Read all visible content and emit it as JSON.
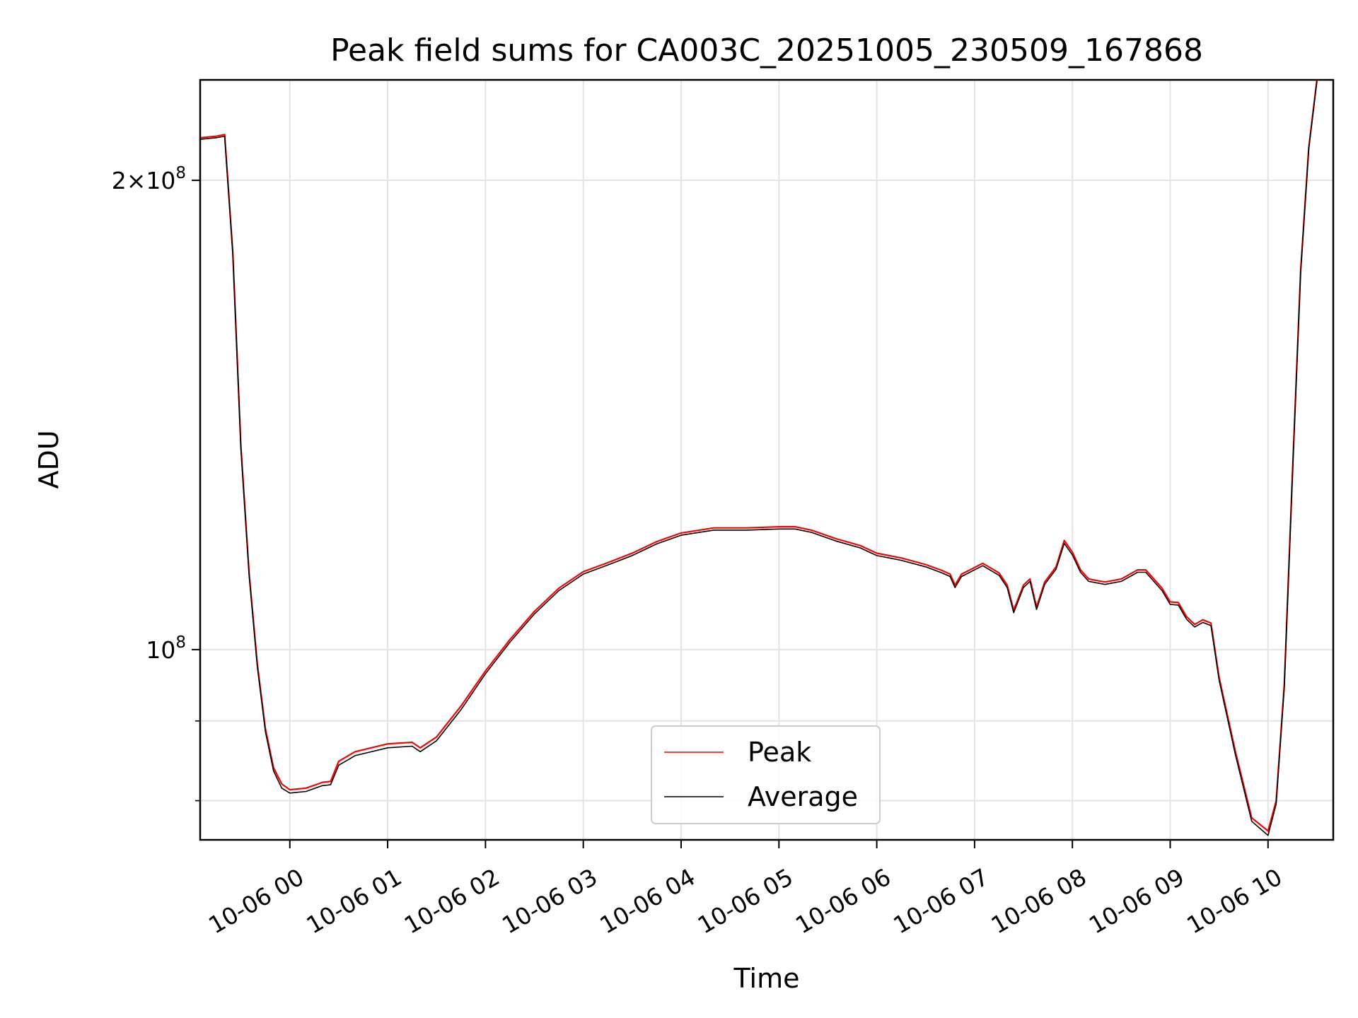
{
  "chart_data": {
    "type": "line",
    "title": "Peak field sums for CA003C_20251005_230509_167868",
    "xlabel": "Time",
    "ylabel": "ADU",
    "y_scale": "log",
    "ylim": [
      75500000,
      232000000
    ],
    "xlim": [
      "2025-10-05 23:05",
      "2025-10-06 10:40"
    ],
    "grid": true,
    "legend_position": "lower-center",
    "x_ticks": [
      {
        "t": "2025-10-06 00:00",
        "label": "10-06 00"
      },
      {
        "t": "2025-10-06 01:00",
        "label": "10-06 01"
      },
      {
        "t": "2025-10-06 02:00",
        "label": "10-06 02"
      },
      {
        "t": "2025-10-06 03:00",
        "label": "10-06 03"
      },
      {
        "t": "2025-10-06 04:00",
        "label": "10-06 04"
      },
      {
        "t": "2025-10-06 05:00",
        "label": "10-06 05"
      },
      {
        "t": "2025-10-06 06:00",
        "label": "10-06 06"
      },
      {
        "t": "2025-10-06 07:00",
        "label": "10-06 07"
      },
      {
        "t": "2025-10-06 08:00",
        "label": "10-06 08"
      },
      {
        "t": "2025-10-06 09:00",
        "label": "10-06 09"
      },
      {
        "t": "2025-10-06 10:00",
        "label": "10-06 10"
      }
    ],
    "y_major_ticks": [
      {
        "value": 100000000,
        "base": "10",
        "exp": "8",
        "coef": ""
      },
      {
        "value": 200000000,
        "base": "10",
        "exp": "8",
        "coef": "2"
      }
    ],
    "y_minor_ticks": [
      80000000,
      90000000
    ],
    "series": [
      {
        "name": "Peak",
        "color": "#ff0000",
        "points": [
          [
            "2025-10-05 23:05",
            213000000
          ],
          [
            "2025-10-05 23:15",
            213500000
          ],
          [
            "2025-10-05 23:20",
            214000000
          ],
          [
            "2025-10-05 23:25",
            180000000
          ],
          [
            "2025-10-05 23:30",
            135000000
          ],
          [
            "2025-10-05 23:35",
            112000000
          ],
          [
            "2025-10-05 23:40",
            98000000
          ],
          [
            "2025-10-05 23:45",
            89000000
          ],
          [
            "2025-10-05 23:50",
            84000000
          ],
          [
            "2025-10-05 23:55",
            82000000
          ],
          [
            "2025-10-06 00:00",
            81300000
          ],
          [
            "2025-10-06 00:10",
            81500000
          ],
          [
            "2025-10-06 00:20",
            82200000
          ],
          [
            "2025-10-06 00:25",
            82300000
          ],
          [
            "2025-10-06 00:30",
            84800000
          ],
          [
            "2025-10-06 00:40",
            86000000
          ],
          [
            "2025-10-06 01:00",
            87000000
          ],
          [
            "2025-10-06 01:15",
            87200000
          ],
          [
            "2025-10-06 01:20",
            86500000
          ],
          [
            "2025-10-06 01:30",
            87900000
          ],
          [
            "2025-10-06 01:45",
            92000000
          ],
          [
            "2025-10-06 02:00",
            96900000
          ],
          [
            "2025-10-06 02:15",
            101500000
          ],
          [
            "2025-10-06 02:30",
            105800000
          ],
          [
            "2025-10-06 02:45",
            109500000
          ],
          [
            "2025-10-06 03:00",
            112200000
          ],
          [
            "2025-10-06 03:15",
            113700000
          ],
          [
            "2025-10-06 03:30",
            115300000
          ],
          [
            "2025-10-06 03:45",
            117300000
          ],
          [
            "2025-10-06 04:00",
            118800000
          ],
          [
            "2025-10-06 04:20",
            119700000
          ],
          [
            "2025-10-06 04:40",
            119700000
          ],
          [
            "2025-10-06 05:00",
            119900000
          ],
          [
            "2025-10-06 05:10",
            119900000
          ],
          [
            "2025-10-06 05:20",
            119300000
          ],
          [
            "2025-10-06 05:35",
            117800000
          ],
          [
            "2025-10-06 05:50",
            116600000
          ],
          [
            "2025-10-06 06:00",
            115300000
          ],
          [
            "2025-10-06 06:15",
            114500000
          ],
          [
            "2025-10-06 06:30",
            113400000
          ],
          [
            "2025-10-06 06:40",
            112400000
          ],
          [
            "2025-10-06 06:45",
            111800000
          ],
          [
            "2025-10-06 06:48",
            110000000
          ],
          [
            "2025-10-06 06:52",
            111800000
          ],
          [
            "2025-10-06 07:05",
            113600000
          ],
          [
            "2025-10-06 07:15",
            112000000
          ],
          [
            "2025-10-06 07:20",
            110000000
          ],
          [
            "2025-10-06 07:24",
            106000000
          ],
          [
            "2025-10-06 07:30",
            110000000
          ],
          [
            "2025-10-06 07:34",
            111000000
          ],
          [
            "2025-10-06 07:38",
            106500000
          ],
          [
            "2025-10-06 07:43",
            110500000
          ],
          [
            "2025-10-06 07:50",
            113000000
          ],
          [
            "2025-10-06 07:55",
            117500000
          ],
          [
            "2025-10-06 08:00",
            115500000
          ],
          [
            "2025-10-06 08:05",
            112500000
          ],
          [
            "2025-10-06 08:10",
            111000000
          ],
          [
            "2025-10-06 08:20",
            110500000
          ],
          [
            "2025-10-06 08:30",
            111000000
          ],
          [
            "2025-10-06 08:40",
            112500000
          ],
          [
            "2025-10-06 08:45",
            112500000
          ],
          [
            "2025-10-06 08:55",
            109500000
          ],
          [
            "2025-10-06 09:00",
            107300000
          ],
          [
            "2025-10-06 09:05",
            107200000
          ],
          [
            "2025-10-06 09:10",
            105000000
          ],
          [
            "2025-10-06 09:15",
            103800000
          ],
          [
            "2025-10-06 09:20",
            104500000
          ],
          [
            "2025-10-06 09:25",
            104000000
          ],
          [
            "2025-10-06 09:30",
            96000000
          ],
          [
            "2025-10-06 09:40",
            86000000
          ],
          [
            "2025-10-06 09:50",
            78000000
          ],
          [
            "2025-10-06 10:00",
            76500000
          ],
          [
            "2025-10-06 10:05",
            80000000
          ],
          [
            "2025-10-06 10:10",
            95000000
          ],
          [
            "2025-10-06 10:15",
            130000000
          ],
          [
            "2025-10-06 10:20",
            175000000
          ],
          [
            "2025-10-06 10:25",
            210000000
          ],
          [
            "2025-10-06 10:30",
            232000000
          ]
        ]
      },
      {
        "name": "Average",
        "color": "#000000",
        "points": [
          [
            "2025-10-05 23:05",
            212500000
          ],
          [
            "2025-10-05 23:15",
            213000000
          ],
          [
            "2025-10-05 23:20",
            213500000
          ],
          [
            "2025-10-05 23:25",
            179500000
          ],
          [
            "2025-10-05 23:30",
            134500000
          ],
          [
            "2025-10-05 23:35",
            111600000
          ],
          [
            "2025-10-05 23:40",
            97600000
          ],
          [
            "2025-10-05 23:45",
            88600000
          ],
          [
            "2025-10-05 23:50",
            83600000
          ],
          [
            "2025-10-05 23:55",
            81500000
          ],
          [
            "2025-10-06 00:00",
            80900000
          ],
          [
            "2025-10-06 00:10",
            81100000
          ],
          [
            "2025-10-06 00:20",
            81800000
          ],
          [
            "2025-10-06 00:25",
            81900000
          ],
          [
            "2025-10-06 00:30",
            84300000
          ],
          [
            "2025-10-06 00:40",
            85500000
          ],
          [
            "2025-10-06 01:00",
            86500000
          ],
          [
            "2025-10-06 01:15",
            86700000
          ],
          [
            "2025-10-06 01:20",
            86000000
          ],
          [
            "2025-10-06 01:30",
            87400000
          ],
          [
            "2025-10-06 01:45",
            91500000
          ],
          [
            "2025-10-06 02:00",
            96500000
          ],
          [
            "2025-10-06 02:15",
            101100000
          ],
          [
            "2025-10-06 02:30",
            105400000
          ],
          [
            "2025-10-06 02:45",
            109100000
          ],
          [
            "2025-10-06 03:00",
            111800000
          ],
          [
            "2025-10-06 03:15",
            113300000
          ],
          [
            "2025-10-06 03:30",
            114900000
          ],
          [
            "2025-10-06 03:45",
            116900000
          ],
          [
            "2025-10-06 04:00",
            118400000
          ],
          [
            "2025-10-06 04:20",
            119300000
          ],
          [
            "2025-10-06 04:40",
            119300000
          ],
          [
            "2025-10-06 05:00",
            119500000
          ],
          [
            "2025-10-06 05:10",
            119500000
          ],
          [
            "2025-10-06 05:20",
            118900000
          ],
          [
            "2025-10-06 05:35",
            117400000
          ],
          [
            "2025-10-06 05:50",
            116200000
          ],
          [
            "2025-10-06 06:00",
            114900000
          ],
          [
            "2025-10-06 06:15",
            114100000
          ],
          [
            "2025-10-06 06:30",
            113000000
          ],
          [
            "2025-10-06 06:40",
            112000000
          ],
          [
            "2025-10-06 06:45",
            111400000
          ],
          [
            "2025-10-06 06:48",
            109600000
          ],
          [
            "2025-10-06 06:52",
            111400000
          ],
          [
            "2025-10-06 07:05",
            113200000
          ],
          [
            "2025-10-06 07:15",
            111600000
          ],
          [
            "2025-10-06 07:20",
            109600000
          ],
          [
            "2025-10-06 07:24",
            105600000
          ],
          [
            "2025-10-06 07:30",
            109600000
          ],
          [
            "2025-10-06 07:34",
            110600000
          ],
          [
            "2025-10-06 07:38",
            106100000
          ],
          [
            "2025-10-06 07:43",
            110100000
          ],
          [
            "2025-10-06 07:50",
            112600000
          ],
          [
            "2025-10-06 07:55",
            117000000
          ],
          [
            "2025-10-06 08:00",
            115000000
          ],
          [
            "2025-10-06 08:05",
            112100000
          ],
          [
            "2025-10-06 08:10",
            110600000
          ],
          [
            "2025-10-06 08:20",
            110100000
          ],
          [
            "2025-10-06 08:30",
            110600000
          ],
          [
            "2025-10-06 08:40",
            112100000
          ],
          [
            "2025-10-06 08:45",
            112100000
          ],
          [
            "2025-10-06 08:55",
            109100000
          ],
          [
            "2025-10-06 09:00",
            106900000
          ],
          [
            "2025-10-06 09:05",
            106800000
          ],
          [
            "2025-10-06 09:10",
            104600000
          ],
          [
            "2025-10-06 09:15",
            103400000
          ],
          [
            "2025-10-06 09:20",
            104100000
          ],
          [
            "2025-10-06 09:25",
            103600000
          ],
          [
            "2025-10-06 09:30",
            95600000
          ],
          [
            "2025-10-06 09:40",
            85600000
          ],
          [
            "2025-10-06 09:50",
            77600000
          ],
          [
            "2025-10-06 10:00",
            76000000
          ],
          [
            "2025-10-06 10:05",
            79600000
          ],
          [
            "2025-10-06 10:10",
            94600000
          ],
          [
            "2025-10-06 10:15",
            129500000
          ],
          [
            "2025-10-06 10:20",
            174500000
          ],
          [
            "2025-10-06 10:25",
            209500000
          ],
          [
            "2025-10-06 10:30",
            231500000
          ]
        ]
      }
    ]
  }
}
